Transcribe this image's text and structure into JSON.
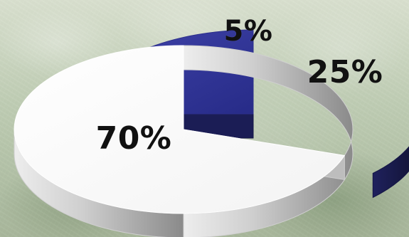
{
  "chart_data": {
    "type": "pie",
    "categories": [
      "70%",
      "5%",
      "25%"
    ],
    "values": [
      70,
      5,
      25
    ],
    "slices": [
      {
        "label": "70%",
        "value": 70,
        "color": "#ffffff",
        "side_color": "#b8b8b8",
        "label_color": "#111111"
      },
      {
        "label": "5%",
        "value": 5,
        "color": "#bfe6e8",
        "side_color": "#8fb1b3",
        "label_color": "#111111"
      },
      {
        "label": "25%",
        "value": 25,
        "color": "#2e3192",
        "side_color": "#17184a",
        "label_color": "#111111"
      }
    ]
  }
}
